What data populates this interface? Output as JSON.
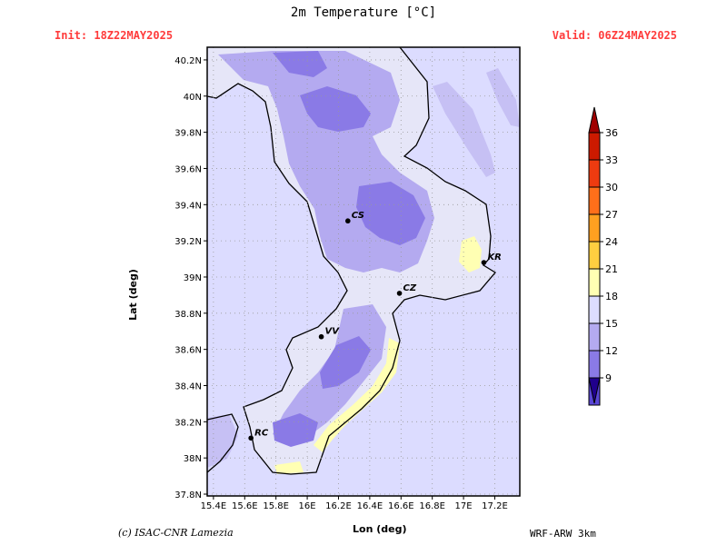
{
  "header": {
    "title": "2m Temperature [°C]",
    "init": "Init: 18Z22MAY2025",
    "valid": "Valid: 06Z24MAY2025"
  },
  "axes": {
    "ylabel": "Lat (deg)",
    "xlabel": "Lon (deg)",
    "lat_ticks": [
      "40.2N",
      "40N",
      "39.8N",
      "39.6N",
      "39.4N",
      "39.2N",
      "39N",
      "38.8N",
      "38.6N",
      "38.4N",
      "38.2N",
      "38N",
      "37.8N"
    ],
    "lon_ticks": [
      "15.4E",
      "15.6E",
      "15.8E",
      "16E",
      "16.2E",
      "16.4E",
      "16.6E",
      "16.8E",
      "17E",
      "17.2E"
    ]
  },
  "map": {
    "lon_range": [
      15.36,
      17.36
    ],
    "lat_range": [
      37.79,
      40.27
    ],
    "cities": [
      {
        "label": "CS",
        "lon": 16.26,
        "lat": 39.31
      },
      {
        "label": "KR",
        "lon": 17.13,
        "lat": 39.08
      },
      {
        "label": "CZ",
        "lon": 16.59,
        "lat": 38.91
      },
      {
        "label": "VV",
        "lon": 16.09,
        "lat": 38.67
      },
      {
        "label": "RC",
        "lon": 15.64,
        "lat": 38.11
      }
    ]
  },
  "colorbar": {
    "labels": [
      "36",
      "33",
      "30",
      "27",
      "24",
      "21",
      "18",
      "15",
      "12",
      "9"
    ],
    "colors": [
      "#cc1a00",
      "#ee3b10",
      "#ff6f1a",
      "#ffa020",
      "#ffcf40",
      "#ffffb3",
      "#dcdcff",
      "#b4aaf0",
      "#8a7ae6",
      "#5a46d6"
    ],
    "top_arrow_color": "#a00000",
    "bottom_arrow_color": "#20008c"
  },
  "footer": {
    "credit": "(c) ISAC-CNR Lamezia",
    "model": "WRF-ARW 3km"
  }
}
